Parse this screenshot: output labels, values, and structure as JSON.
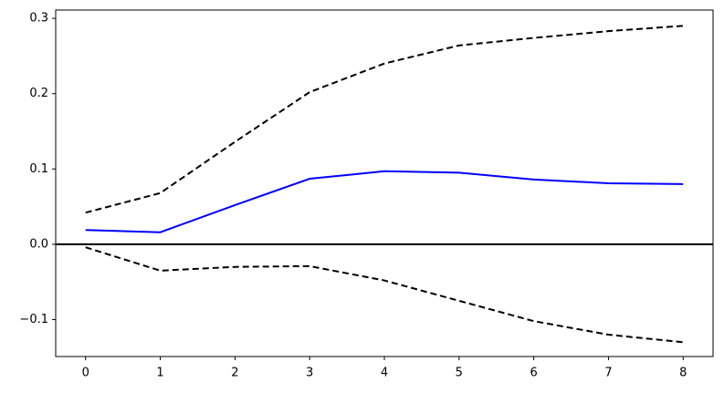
{
  "chart_data": {
    "type": "line",
    "x": [
      0,
      1,
      2,
      3,
      4,
      5,
      6,
      7,
      8
    ],
    "series": [
      {
        "color": "#0000ff",
        "dashed": false,
        "values": [
          0.019,
          0.016,
          0.052,
          0.087,
          0.097,
          0.095,
          0.086,
          0.081,
          0.08
        ]
      },
      {
        "color": "#000000",
        "dashed": true,
        "values": [
          0.042,
          0.068,
          0.136,
          0.202,
          0.24,
          0.264,
          0.274,
          0.283,
          0.29
        ]
      },
      {
        "color": "#000000",
        "dashed": true,
        "values": [
          -0.004,
          -0.035,
          -0.03,
          -0.029,
          -0.048,
          -0.075,
          -0.102,
          -0.12,
          -0.13
        ]
      }
    ],
    "axhline": 0,
    "xlim": [
      -0.4,
      8.4
    ],
    "xticks": [
      0,
      1,
      2,
      3,
      4,
      5,
      6,
      7,
      8
    ],
    "ylim": [
      -0.149,
      0.311
    ],
    "yticks": [
      {
        "value": -0.1,
        "label": "−0.1"
      },
      {
        "value": 0,
        "label": "0.0"
      },
      0.1,
      0.2,
      0.3
    ],
    "grid": false
  }
}
